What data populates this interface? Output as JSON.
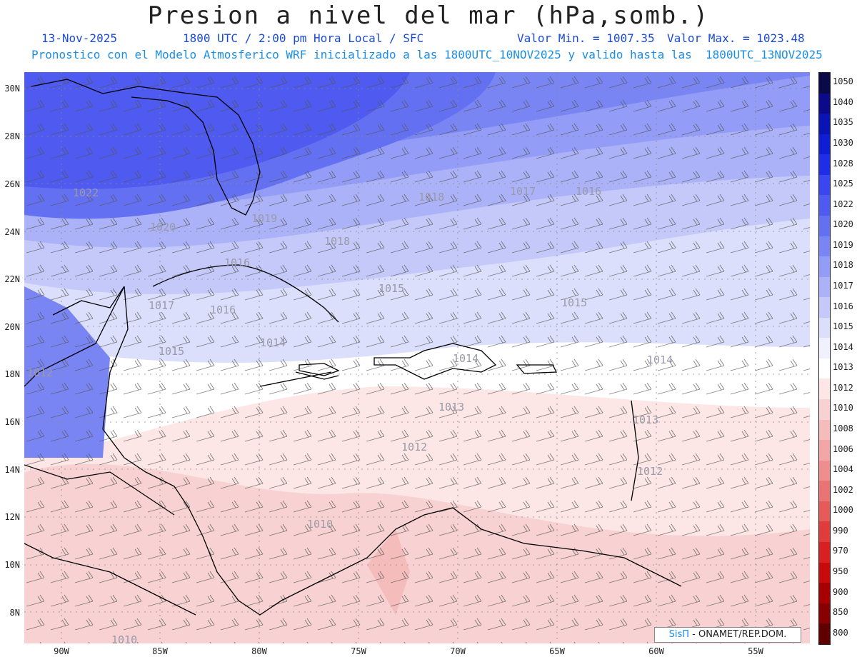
{
  "title": "Presion a nivel del mar (hPa,somb.)",
  "date": "13-Nov-2025",
  "time": "1800 UTC / 2:00 pm Hora Local / SFC",
  "min_label": "Valor Min. = 1007.35",
  "max_label": "Valor Max. = 1023.48",
  "subtitle": "Pronostico con el Modelo Atmosferico WRF inicializado a las 1800UTC_10NOV2025 y valido hasta las  1800UTC_13NOV2025",
  "lat_labels": [
    "30N",
    "28N",
    "26N",
    "24N",
    "22N",
    "20N",
    "18N",
    "16N",
    "14N",
    "12N",
    "10N",
    "8N"
  ],
  "lon_labels": [
    "90W",
    "85W",
    "80W",
    "75W",
    "70W",
    "65W",
    "60W",
    "55W"
  ],
  "colorbar": [
    {
      "label": "1050",
      "color": "#0a0a4a"
    },
    {
      "label": "1040",
      "color": "#0a0a8a"
    },
    {
      "label": "1035",
      "color": "#0a14b4"
    },
    {
      "label": "1030",
      "color": "#0f1ed2"
    },
    {
      "label": "1028",
      "color": "#1e2de8"
    },
    {
      "label": "1025",
      "color": "#3a46f0"
    },
    {
      "label": "1022",
      "color": "#4e5af0"
    },
    {
      "label": "1020",
      "color": "#6470f2"
    },
    {
      "label": "1019",
      "color": "#7a85f4"
    },
    {
      "label": "1018",
      "color": "#939cf6"
    },
    {
      "label": "1017",
      "color": "#abb2f7"
    },
    {
      "label": "1016",
      "color": "#c4c9f9"
    },
    {
      "label": "1015",
      "color": "#dcdffb"
    },
    {
      "label": "1014",
      "color": "#f0f1fd"
    },
    {
      "label": "1013",
      "color": "#ffffff"
    },
    {
      "label": "1012",
      "color": "#fce6e6"
    },
    {
      "label": "1010",
      "color": "#f8d2d2"
    },
    {
      "label": "1008",
      "color": "#f5bcbc"
    },
    {
      "label": "1006",
      "color": "#f2a6a6"
    },
    {
      "label": "1004",
      "color": "#ee8e8e"
    },
    {
      "label": "1002",
      "color": "#ea7474"
    },
    {
      "label": "1000",
      "color": "#e65a5a"
    },
    {
      "label": "990",
      "color": "#e03c3c"
    },
    {
      "label": "970",
      "color": "#d82020"
    },
    {
      "label": "950",
      "color": "#c80a0a"
    },
    {
      "label": "900",
      "color": "#a80000"
    },
    {
      "label": "850",
      "color": "#880000"
    },
    {
      "label": "800",
      "color": "#600000"
    }
  ],
  "contour_labels": [
    "1022",
    "1020",
    "1019",
    "1018",
    "1018",
    "1017",
    "1017",
    "1016",
    "1016",
    "1016",
    "1015",
    "1015",
    "1015",
    "1014",
    "1014",
    "1014",
    "1013",
    "1013",
    "1012",
    "1012",
    "1012",
    "1010",
    "1010",
    "1013"
  ],
  "credit_brand": "SisΠ",
  "credit_org": "- ONAMET/REP.DOM."
}
